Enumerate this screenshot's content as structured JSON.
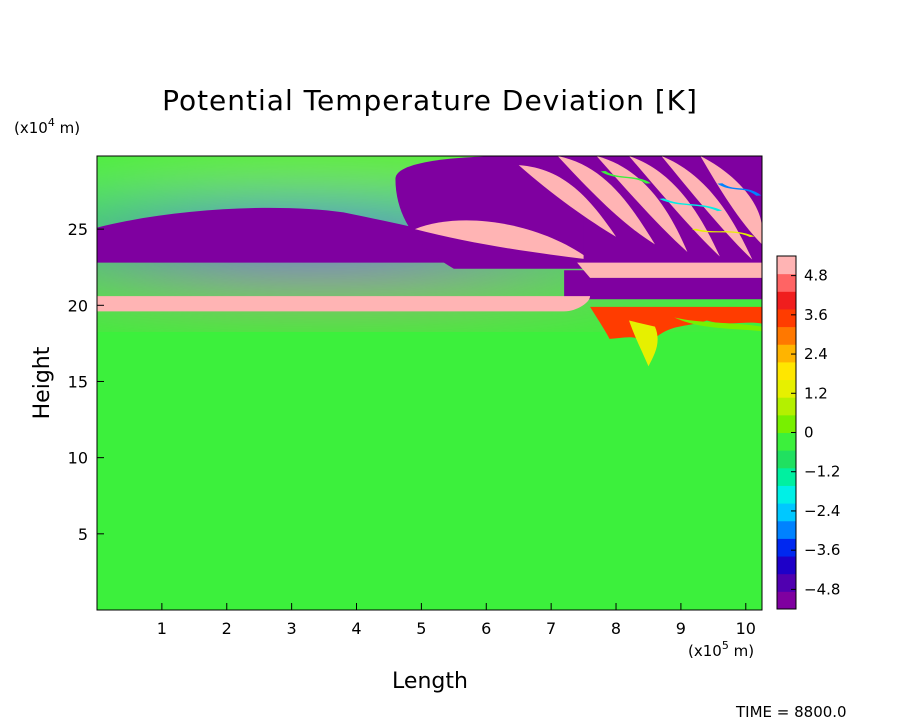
{
  "chart_data": {
    "type": "heatmap",
    "title": "Potential Temperature Deviation [K]",
    "xlabel": "Length",
    "ylabel": "Height",
    "x_unit": "(x10^5 m)",
    "y_unit": "(x10^4 m)",
    "x_unit_parts": {
      "pre": "(x10",
      "exp": "5",
      "post": " m)"
    },
    "y_unit_parts": {
      "pre": "(x10",
      "exp": "4",
      "post": " m)"
    },
    "xlim": [
      0,
      10.25
    ],
    "ylim": [
      0,
      29.8
    ],
    "x_ticks": [
      1,
      2,
      3,
      4,
      5,
      6,
      7,
      8,
      9,
      10
    ],
    "x_tick_labels": [
      "1",
      "2",
      "3",
      "4",
      "5",
      "6",
      "7",
      "8",
      "9",
      "10"
    ],
    "y_ticks": [
      5,
      10,
      15,
      20,
      25
    ],
    "y_tick_labels": [
      "5",
      "10",
      "15",
      "20",
      "25"
    ],
    "colorbar": {
      "range": [
        -5.4,
        5.4
      ],
      "ticks": [
        4.8,
        3.6,
        2.4,
        1.2,
        0,
        -1.2,
        -2.4,
        -3.6,
        -4.8
      ],
      "tick_labels": [
        "4.8",
        "3.6",
        "2.4",
        "1.2",
        "0",
        "−1.2",
        "−2.4",
        "−3.6",
        "−4.8"
      ],
      "colors": [
        "#7f00a0",
        "#5000b0",
        "#1e00c8",
        "#0028f0",
        "#0082ff",
        "#00c8ff",
        "#00f0e6",
        "#00f0a0",
        "#20e060",
        "#3cf03c",
        "#78f000",
        "#b4f000",
        "#e6f000",
        "#ffe600",
        "#ffb400",
        "#ff7800",
        "#ff3c00",
        "#f01e1e",
        "#ff6464",
        "#ffb4b4"
      ]
    },
    "field_description": "Near-zero deviation (green) below ~19.5; thin warm band (~4.8) at 19.7–20.5; strong cold anomaly (below −4.8) centred near height 24 for lengths 0–7.5; warm tongue (~4.8) near height 24.5, length 5–7; alternating warm/cold wave pattern for lengths 7.5–10.25 above height 20; small turbulent warm patches near length 7.5–8.5, height 17–20."
  },
  "footer": {
    "time_label": "TIME = 8800.0"
  }
}
